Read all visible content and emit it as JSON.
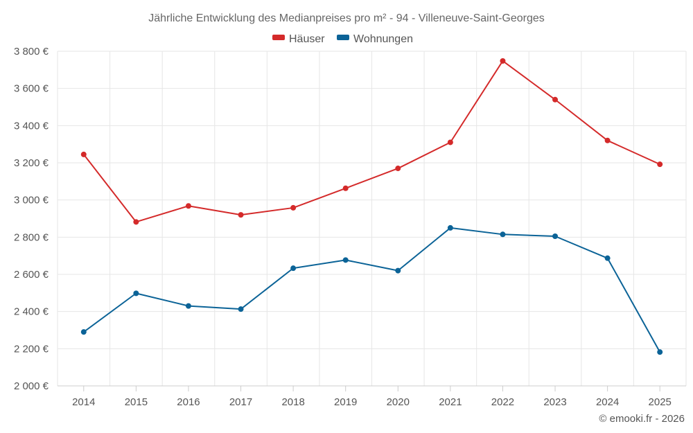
{
  "chart_data": {
    "type": "line",
    "title": "Jährliche Entwicklung des Medianpreises pro m² - 94 - Villeneuve-Saint-Georges",
    "xlabel": "",
    "ylabel": "",
    "categories": [
      "2014",
      "2015",
      "2016",
      "2017",
      "2018",
      "2019",
      "2020",
      "2021",
      "2022",
      "2023",
      "2024",
      "2025"
    ],
    "ylim": [
      2000,
      3800
    ],
    "yticks": [
      2000,
      2200,
      2400,
      2600,
      2800,
      3000,
      3200,
      3400,
      3600,
      3800
    ],
    "ytick_labels": [
      "2 000 €",
      "2 200 €",
      "2 400 €",
      "2 600 €",
      "2 800 €",
      "3 000 €",
      "3 200 €",
      "3 400 €",
      "3 600 €",
      "3 800 €"
    ],
    "grid": true,
    "legend_position": "top-center",
    "series": [
      {
        "name": "Häuser",
        "color": "#d42a2a",
        "values": [
          3245,
          2882,
          2968,
          2920,
          2958,
          3063,
          3170,
          3310,
          3748,
          3540,
          3320,
          3192
        ]
      },
      {
        "name": "Wohnungen",
        "color": "#0b6397",
        "values": [
          2290,
          2498,
          2430,
          2413,
          2633,
          2677,
          2620,
          2850,
          2815,
          2805,
          2687,
          2182
        ]
      }
    ],
    "credit": "© emooki.fr - 2026"
  }
}
